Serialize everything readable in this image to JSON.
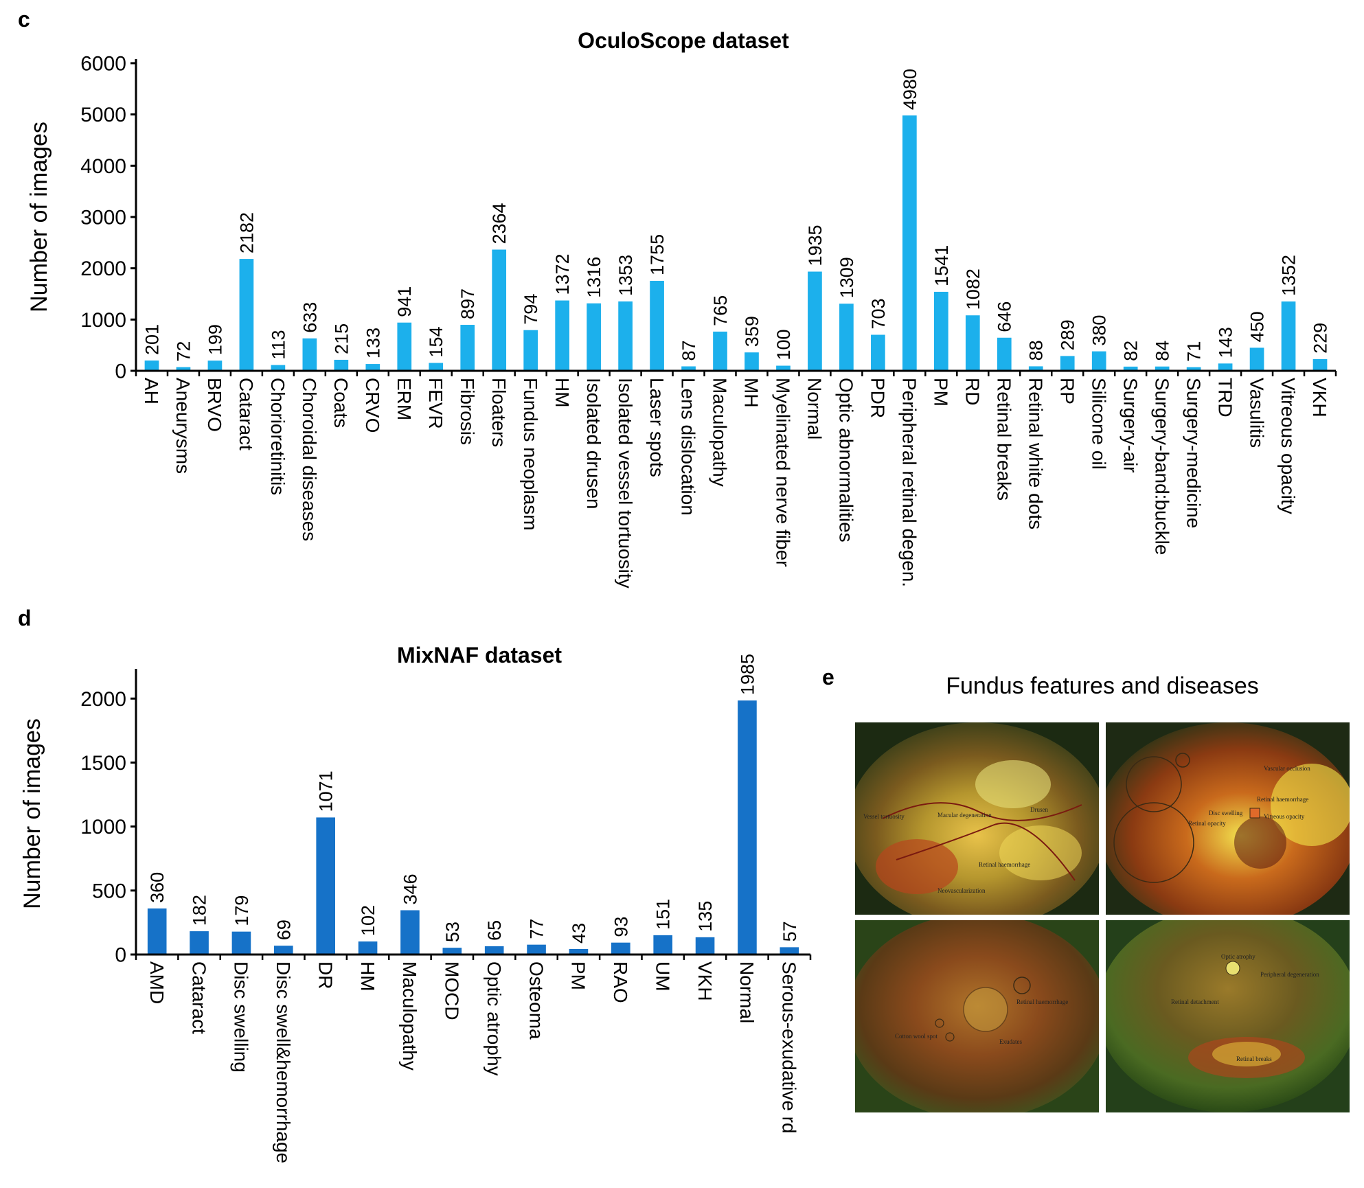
{
  "panels": {
    "c": {
      "letter": "c"
    },
    "d": {
      "letter": "d"
    },
    "e": {
      "letter": "e",
      "title": "Fundus features and diseases",
      "images": [
        {
          "name": "fundus-image-1",
          "labels": [
            "Vessel tortuosity",
            "Macular degeneration",
            "Drusen",
            "Retinal haemorrhage",
            "Neovascularization"
          ]
        },
        {
          "name": "fundus-image-2",
          "labels": [
            "Vascular occlusion",
            "Retinal haemorrhage",
            "Disc swelling",
            "Vitreous opacity",
            "Retinal opacity"
          ]
        },
        {
          "name": "fundus-image-3",
          "labels": [
            "Retinal haemorrhage",
            "Cotton wool spot",
            "Exudates"
          ]
        },
        {
          "name": "fundus-image-4",
          "labels": [
            "Optic atrophy",
            "Peripheral degeneration",
            "Retinal detachment",
            "Retinal breaks"
          ]
        }
      ]
    }
  },
  "colors": {
    "oculoscope_bar": "#1CB0EC",
    "mixnaf_bar": "#1672C8",
    "axis": "#000000"
  },
  "chart_data": [
    {
      "id": "oculoscope",
      "type": "bar",
      "title": "OculoScope dataset",
      "ylabel": "Number of images",
      "xlabel": "",
      "ylim": [
        0,
        6000
      ],
      "yticks": [
        0,
        1000,
        2000,
        3000,
        4000,
        5000,
        6000
      ],
      "categories": [
        "AH",
        "Aneurysms",
        "BRVO",
        "Cataract",
        "Chorioretinitis",
        "Choroidal diseases",
        "Coats",
        "CRVO",
        "ERM",
        "FEVR",
        "Fibrosis",
        "Floaters",
        "Fundus neoplasm",
        "HM",
        "Isolated drusen",
        "Isolated vessel tortuosity",
        "Laser spots",
        "Lens dislocation",
        "Maculopathy",
        "MH",
        "Myelinated nerve fiber",
        "Normal",
        "Optic abnormalities",
        "PDR",
        "Peripheral retinal degen.",
        "PM",
        "RD",
        "Retinal breaks",
        "Retinal white dots",
        "RP",
        "Silicone oil",
        "Surgery-air",
        "Surgery-band:buckle",
        "Surgery-medicine",
        "TRD",
        "Vasulitis",
        "Vitreous opacity",
        "VKH"
      ],
      "values": [
        201,
        72,
        199,
        2182,
        113,
        633,
        215,
        133,
        941,
        154,
        897,
        2364,
        794,
        1372,
        1316,
        1353,
        1755,
        87,
        765,
        359,
        100,
        1935,
        1309,
        703,
        4980,
        1541,
        1082,
        646,
        88,
        289,
        380,
        82,
        84,
        71,
        143,
        450,
        1352,
        229
      ]
    },
    {
      "id": "mixnaf",
      "type": "bar",
      "title": "MixNAF dataset",
      "ylabel": "Number of images",
      "xlabel": "",
      "ylim": [
        0,
        2200
      ],
      "yticks": [
        0,
        500,
        1000,
        1500,
        2000
      ],
      "categories": [
        "AMD",
        "Cataract",
        "Disc swelling",
        "Disc swell&hemorrhage",
        "DR",
        "HM",
        "Maculopathy",
        "MOCD",
        "Optic atrophy",
        "Osteoma",
        "PM",
        "RAO",
        "UM",
        "VKH",
        "Normal",
        "Serous-exudative rd"
      ],
      "values": [
        360,
        182,
        179,
        69,
        1071,
        102,
        346,
        53,
        65,
        77,
        43,
        93,
        151,
        135,
        1985,
        57
      ]
    }
  ]
}
